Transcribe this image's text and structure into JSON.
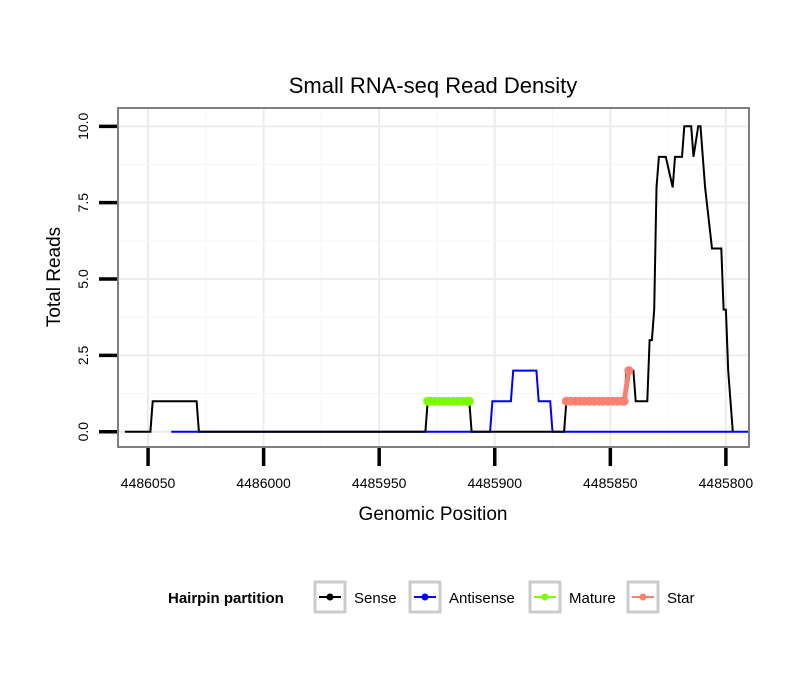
{
  "chart_data": {
    "type": "line",
    "title": "Small RNA-seq Read Density",
    "xlabel": "Genomic Position",
    "ylabel": "Total Reads",
    "x_reversed": true,
    "xlim": [
      4486063,
      4485790
    ],
    "ylim": [
      -0.5,
      10.6
    ],
    "x_ticks": [
      4486050,
      4486000,
      4485950,
      4485900,
      4485850,
      4485800
    ],
    "x_tick_labels": [
      "4486050",
      "4486000",
      "4485950",
      "4485900",
      "4485850",
      "4485800"
    ],
    "y_ticks": [
      0,
      2.5,
      5,
      7.5,
      10
    ],
    "y_tick_labels": [
      "0.0",
      "2.5",
      "5.0",
      "7.5",
      "10.0"
    ],
    "grid": true,
    "legend": {
      "title": "Hairpin partition",
      "position": "bottom",
      "items": [
        {
          "name": "Sense",
          "color": "#000000"
        },
        {
          "name": "Antisense",
          "color": "#0000ff"
        },
        {
          "name": "Mature",
          "color": "#7cfc00"
        },
        {
          "name": "Star",
          "color": "#fa8072"
        }
      ]
    },
    "series": [
      {
        "name": "Antisense",
        "color": "#0000ff",
        "x": [
          4486040,
          4485902,
          4485901,
          4485893,
          4485892,
          4485882,
          4485881,
          4485876,
          4485875,
          4485872,
          4485871,
          4485790
        ],
        "y": [
          0,
          0,
          1,
          1,
          2,
          2,
          1,
          1,
          0,
          0,
          0,
          0
        ]
      },
      {
        "name": "Sense",
        "color": "#000000",
        "x": [
          4486060,
          4486049,
          4486048,
          4486029,
          4486028,
          4485930,
          4485929,
          4485911,
          4485910,
          4485870,
          4485869,
          4485844,
          4485843,
          4485840,
          4485839,
          4485834,
          4485833,
          4485832,
          4485831,
          4485830,
          4485829,
          4485828,
          4485826,
          4485823,
          4485822,
          4485819,
          4485818,
          4485815,
          4485814,
          4485812,
          4485811,
          4485810,
          4485809,
          4485806,
          4485805,
          4485802,
          4485801,
          4485800,
          4485799,
          4485798,
          4485797
        ],
        "y": [
          0,
          0,
          1,
          1,
          0,
          0,
          1,
          1,
          0,
          0,
          1,
          1,
          2,
          2,
          1,
          1,
          3,
          3,
          4,
          8,
          9,
          9,
          9,
          8,
          9,
          9,
          10,
          10,
          9,
          10,
          10,
          9,
          8,
          6,
          6,
          6,
          4,
          4,
          2,
          1,
          0
        ]
      },
      {
        "name": "Mature",
        "color": "#7cfc00",
        "x": [
          4485929,
          4485928,
          4485926,
          4485924,
          4485922,
          4485920,
          4485918,
          4485916,
          4485914,
          4485912,
          4485911
        ],
        "y": [
          1,
          1,
          1,
          1,
          1,
          1,
          1,
          1,
          1,
          1,
          1
        ]
      },
      {
        "name": "Star",
        "color": "#fa8072",
        "x": [
          4485869,
          4485867,
          4485865,
          4485863,
          4485861,
          4485859,
          4485857,
          4485855,
          4485853,
          4485851,
          4485849,
          4485847,
          4485845,
          4485844,
          4485842
        ],
        "y": [
          1,
          1,
          1,
          1,
          1,
          1,
          1,
          1,
          1,
          1,
          1,
          1,
          1,
          1,
          2
        ]
      }
    ]
  }
}
